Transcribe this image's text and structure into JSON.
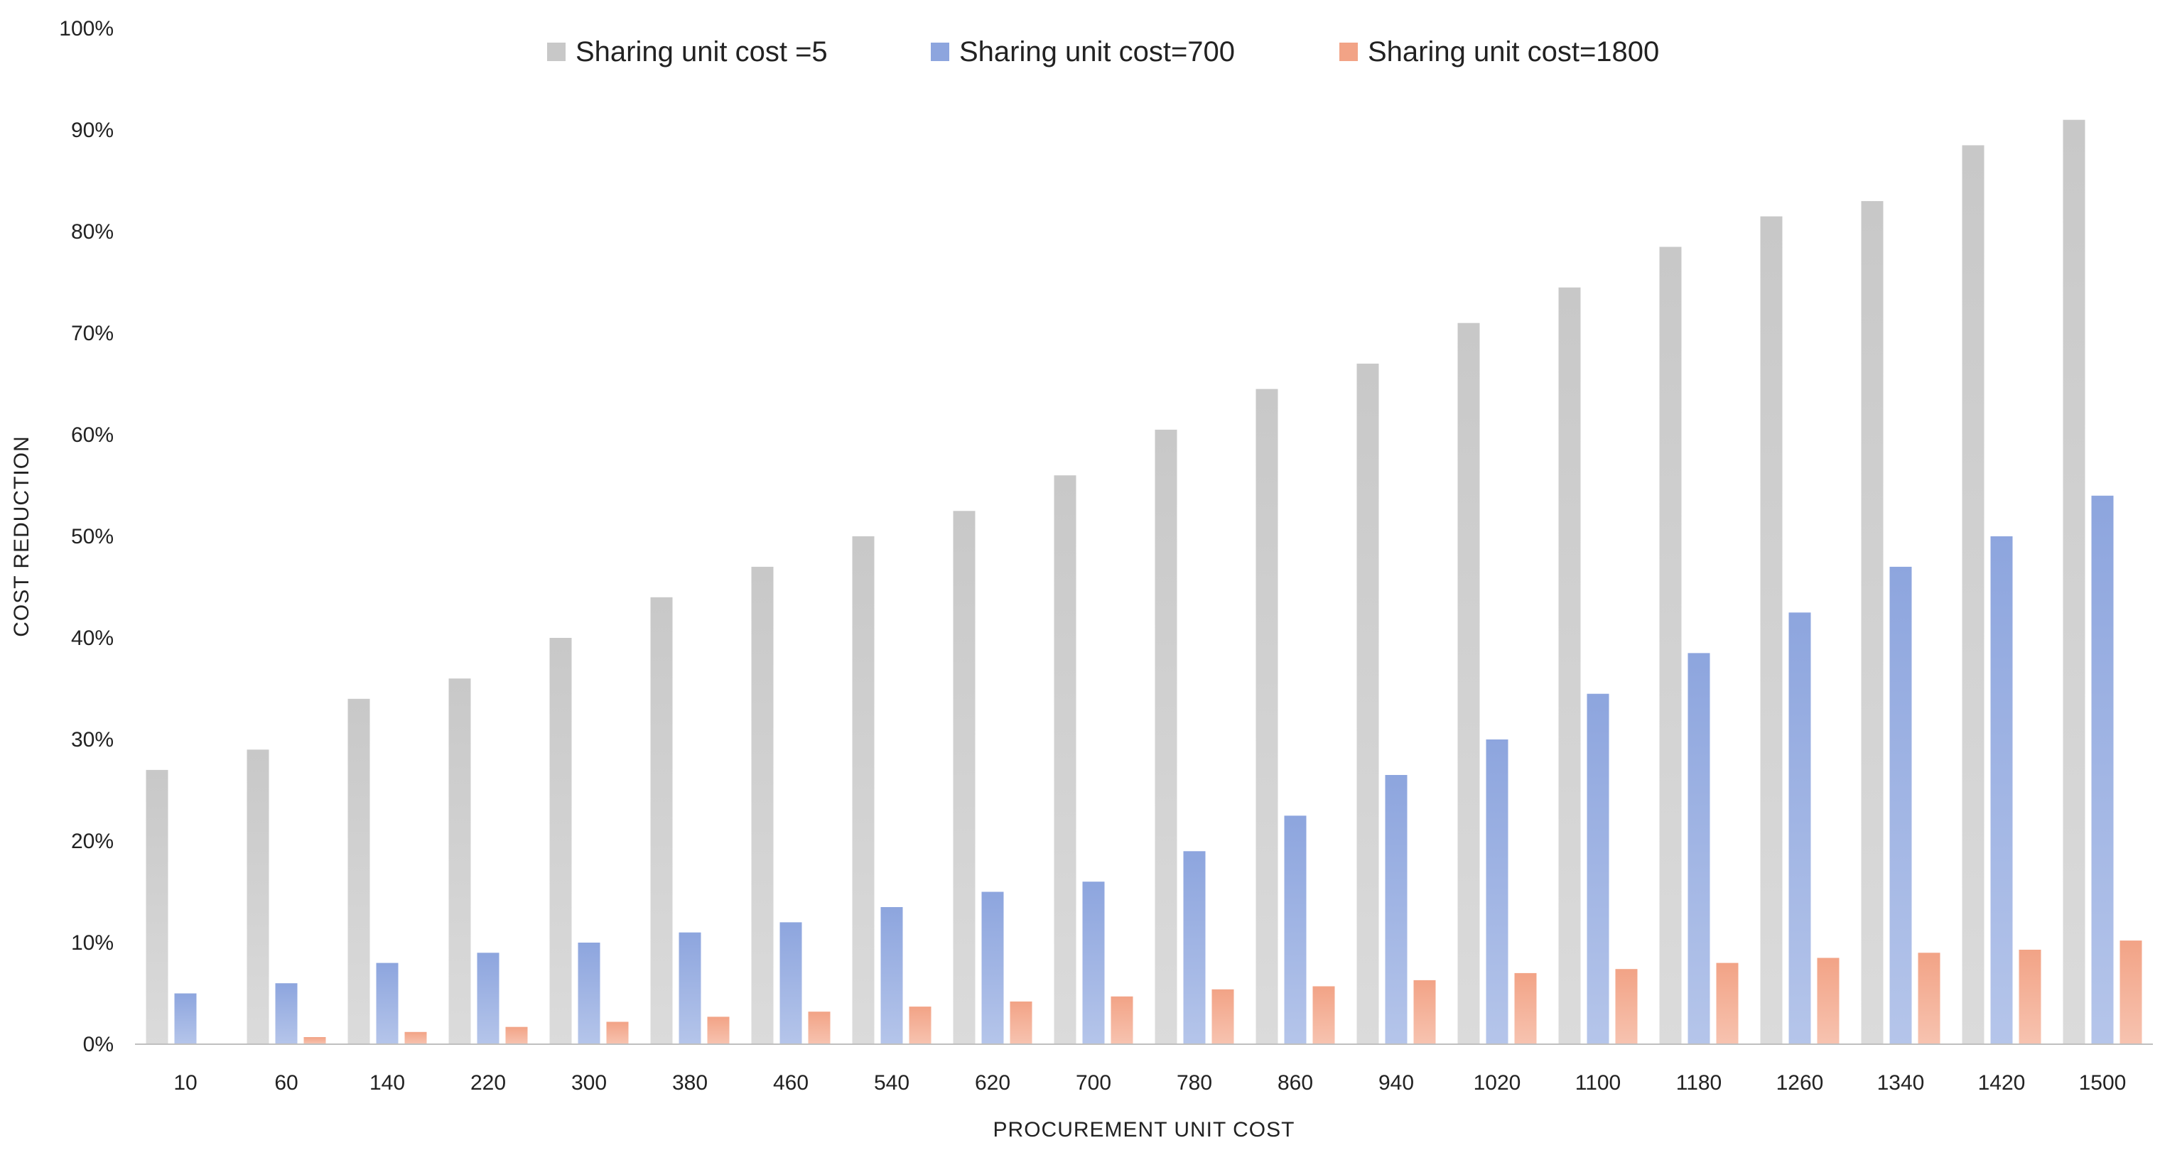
{
  "chart_data": {
    "type": "bar",
    "title": "",
    "xlabel": "PROCUREMENT  UNIT COST",
    "ylabel": "COST REDUCTION",
    "ylim": [
      0,
      100
    ],
    "y_ticks": [
      "0%",
      "10%",
      "20%",
      "30%",
      "40%",
      "50%",
      "60%",
      "70%",
      "80%",
      "90%",
      "100%"
    ],
    "grid": false,
    "legend_position": "top-center",
    "categories": [
      "10",
      "60",
      "140",
      "220",
      "300",
      "380",
      "460",
      "540",
      "620",
      "700",
      "780",
      "860",
      "940",
      "1020",
      "1100",
      "1180",
      "1260",
      "1340",
      "1420",
      "1500"
    ],
    "series": [
      {
        "name": "Sharing unit cost =5",
        "color": "#c8c8c8",
        "values": [
          27,
          29,
          34,
          36,
          40,
          44,
          47,
          50,
          52.5,
          56,
          60.5,
          64.5,
          67,
          71,
          74.5,
          78.5,
          81.5,
          83,
          88.5,
          91
        ]
      },
      {
        "name": "Sharing unit cost=700",
        "color": "#8da5de",
        "values": [
          5,
          6,
          8,
          9,
          10,
          11,
          12,
          13.5,
          15,
          16,
          19,
          22.5,
          26.5,
          30,
          34.5,
          38.5,
          42.5,
          47,
          50,
          54
        ]
      },
      {
        "name": "Sharing unit cost=1800",
        "color": "#f2a386",
        "values": [
          0,
          0.7,
          1.2,
          1.7,
          2.2,
          2.7,
          3.2,
          3.7,
          4.2,
          4.7,
          5.4,
          5.7,
          6.3,
          7,
          7.4,
          8,
          8.5,
          9,
          9.3,
          10.2
        ]
      }
    ]
  }
}
